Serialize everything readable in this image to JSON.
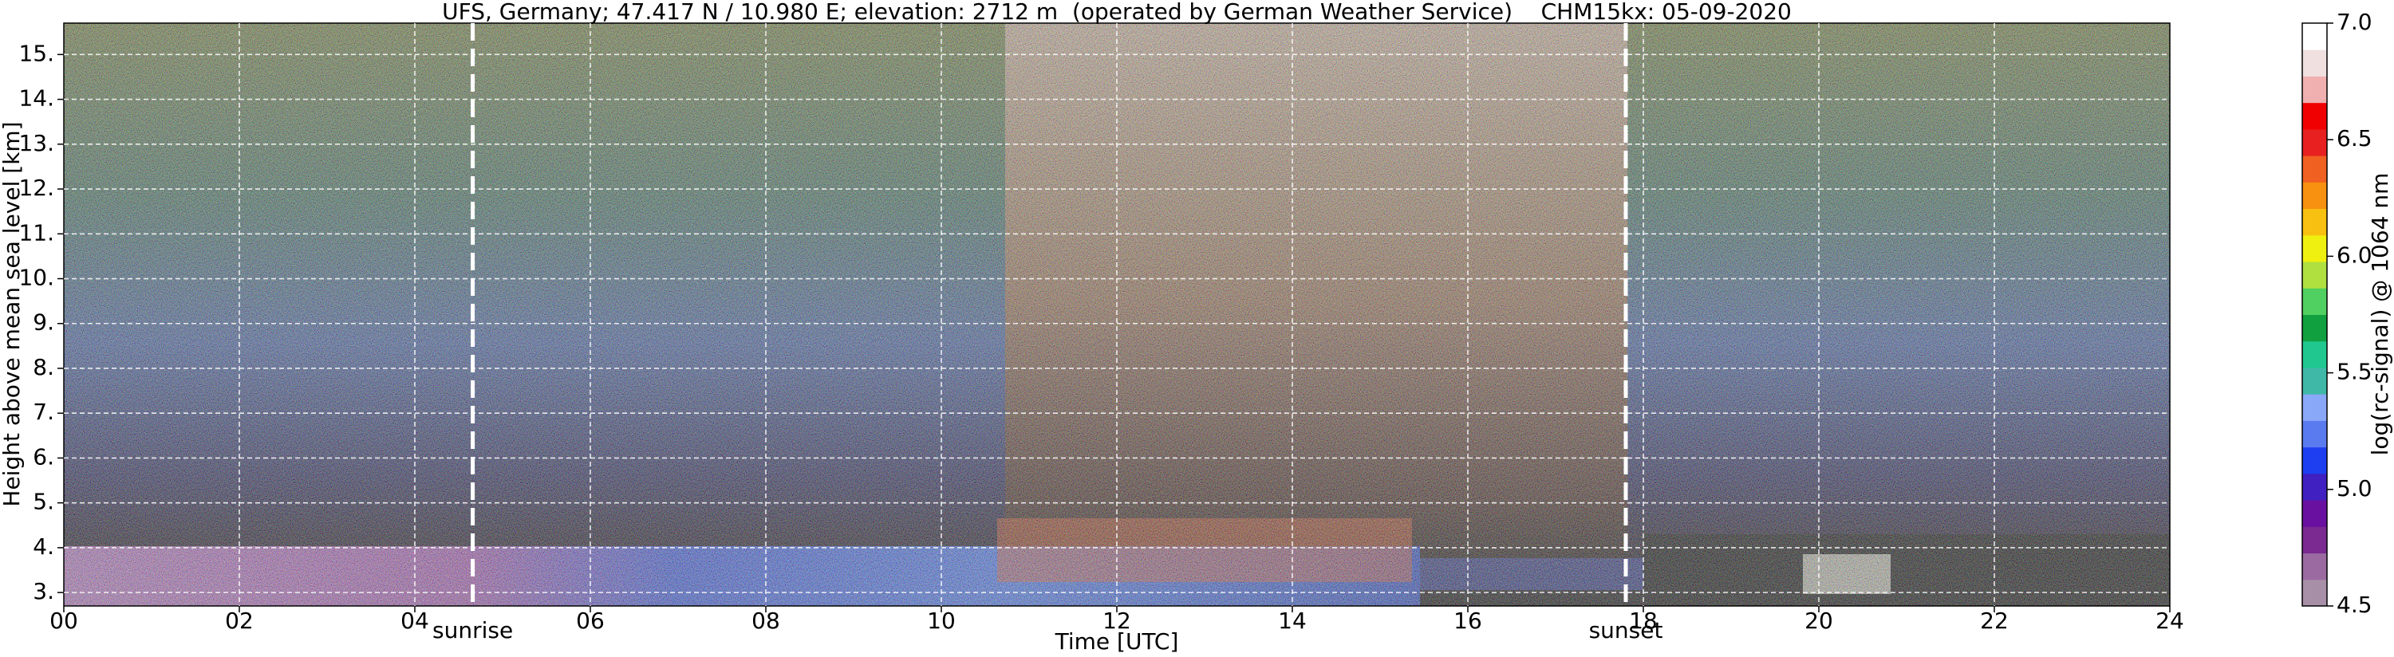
{
  "chart_data": {
    "type": "heatmap",
    "title": "UFS, Germany; 47.417 N / 10.980 E; elevation: 2712 m  (operated by German Weather Service)    CHM15kx: 05-09-2020",
    "x_label": "Time [UTC]",
    "y_label": "Height above mean sea level [km]",
    "colorbar_label": "log(rc-signal) @ 1064 nm",
    "xlim": [
      0,
      24
    ],
    "xticks": [
      {
        "value": 0,
        "label": "00"
      },
      {
        "value": 2,
        "label": "02"
      },
      {
        "value": 4,
        "label": "04"
      },
      {
        "value": 6,
        "label": "06"
      },
      {
        "value": 8,
        "label": "08"
      },
      {
        "value": 10,
        "label": "10"
      },
      {
        "value": 12,
        "label": "12"
      },
      {
        "value": 14,
        "label": "14"
      },
      {
        "value": 16,
        "label": "16"
      },
      {
        "value": 18,
        "label": "18"
      },
      {
        "value": 20,
        "label": "20"
      },
      {
        "value": 22,
        "label": "22"
      },
      {
        "value": 24,
        "label": "24"
      }
    ],
    "ylim": [
      2.7,
      15.7
    ],
    "yticks": [
      {
        "value": 3,
        "label": "3."
      },
      {
        "value": 4,
        "label": "4."
      },
      {
        "value": 5,
        "label": "5."
      },
      {
        "value": 6,
        "label": "6."
      },
      {
        "value": 7,
        "label": "7."
      },
      {
        "value": 8,
        "label": "8."
      },
      {
        "value": 9,
        "label": "9."
      },
      {
        "value": 10,
        "label": "10."
      },
      {
        "value": 11,
        "label": "11."
      },
      {
        "value": 12,
        "label": "12."
      },
      {
        "value": 13,
        "label": "13."
      },
      {
        "value": 14,
        "label": "14."
      },
      {
        "value": 15,
        "label": "15."
      }
    ],
    "grid": true,
    "colorbar_lim": [
      4.5,
      7.0
    ],
    "colorbar_ticks": [
      4.5,
      {
        "value": 5,
        "label": "5.0"
      },
      5.5,
      {
        "value": 6,
        "label": "6.0"
      },
      6.5,
      {
        "value": 7,
        "label": "7.0"
      }
    ],
    "colormap": [
      "#a88fa8",
      "#9a6aa0",
      "#7a2a90",
      "#6a10a0",
      "#4020c0",
      "#1e3ff0",
      "#5a7af0",
      "#8aa8f8",
      "#40b8a8",
      "#20c890",
      "#10a040",
      "#50d060",
      "#b0e040",
      "#f0f010",
      "#f8c010",
      "#f89010",
      "#f06020",
      "#e82020",
      "#f00000",
      "#f0b0b0",
      "#f0e0e0",
      "#ffffff"
    ],
    "annotations": [
      {
        "label": "sunrise",
        "x": 4.66
      },
      {
        "label": "sunset",
        "x": 17.8
      }
    ]
  }
}
